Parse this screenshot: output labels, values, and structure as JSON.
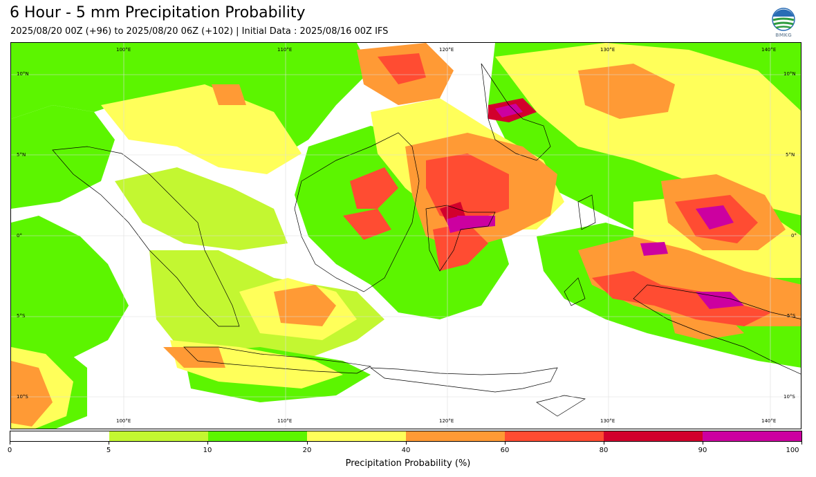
{
  "title": "6 Hour - 5 mm Precipitation Probability",
  "subtitle": "2025/08/20 00Z (+96) to 2025/08/20 06Z (+102) | Initial Data : 2025/08/16 00Z IFS",
  "logo_text": "BMKG",
  "map": {
    "lon_labels": [
      "100°E",
      "110°E",
      "120°E",
      "130°E",
      "140°E"
    ],
    "lat_labels": [
      "10°N",
      "5°N",
      "0°",
      "5°S",
      "10°S"
    ]
  },
  "colorbar": {
    "label": "Precipitation Probability (%)",
    "ticks": [
      "0",
      "5",
      "10",
      "20",
      "40",
      "60",
      "80",
      "90",
      "100"
    ],
    "colors": [
      "#ffffff",
      "#c3f731",
      "#5cf500",
      "#ffff5a",
      "#ff9a35",
      "#ff4c32",
      "#d2002c",
      "#cc00a0"
    ]
  }
}
